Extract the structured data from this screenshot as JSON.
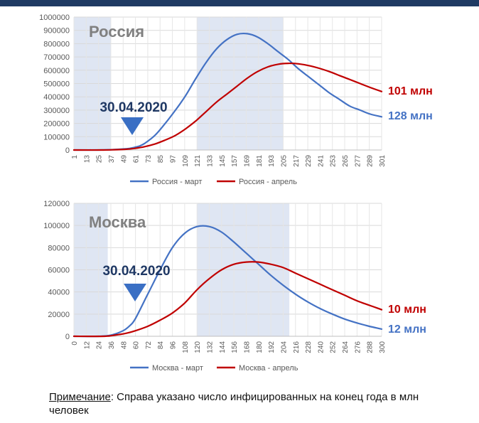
{
  "chart_data": [
    {
      "type": "line",
      "title": "Россия",
      "ylim": [
        0,
        1000000
      ],
      "yticks": [
        0,
        100000,
        200000,
        300000,
        400000,
        500000,
        600000,
        700000,
        800000,
        900000,
        1000000
      ],
      "xlim": [
        1,
        301
      ],
      "xticks": [
        1,
        13,
        25,
        37,
        49,
        61,
        73,
        85,
        97,
        109,
        121,
        133,
        145,
        157,
        169,
        181,
        193,
        205,
        217,
        229,
        241,
        253,
        265,
        277,
        289,
        301
      ],
      "shaded_ranges": [
        [
          1,
          37
        ],
        [
          121,
          205
        ]
      ],
      "grid": true,
      "legend_position": "bottom",
      "series": [
        {
          "name": "Россия - март",
          "color": "#4472c4",
          "x": [
            1,
            20,
            30,
            40,
            50,
            55,
            60,
            65,
            70,
            80,
            90,
            100,
            110,
            120,
            130,
            140,
            150,
            160,
            170,
            180,
            190,
            200,
            210,
            220,
            230,
            240,
            250,
            260,
            270,
            280,
            290,
            301
          ],
          "y": [
            0,
            0,
            1000,
            3000,
            8000,
            12000,
            20000,
            30000,
            50000,
            110000,
            200000,
            300000,
            410000,
            540000,
            660000,
            760000,
            830000,
            870000,
            875000,
            850000,
            800000,
            740000,
            680000,
            610000,
            550000,
            490000,
            430000,
            380000,
            330000,
            300000,
            270000,
            250000
          ]
        },
        {
          "name": "Россия - апрель",
          "color": "#c00000",
          "x": [
            1,
            30,
            40,
            50,
            60,
            70,
            80,
            90,
            100,
            110,
            120,
            130,
            140,
            150,
            160,
            170,
            180,
            190,
            200,
            210,
            220,
            230,
            240,
            250,
            260,
            270,
            280,
            290,
            301
          ],
          "y": [
            0,
            0,
            2000,
            5000,
            12000,
            25000,
            45000,
            75000,
            110000,
            160000,
            220000,
            290000,
            360000,
            420000,
            480000,
            540000,
            590000,
            625000,
            645000,
            652000,
            648000,
            635000,
            615000,
            590000,
            560000,
            530000,
            500000,
            470000,
            440000
          ]
        }
      ],
      "annotations": {
        "date": "30.04.2020",
        "end_label_april": "101 млн",
        "end_label_march": "128 млн"
      }
    },
    {
      "type": "line",
      "title": "Москва",
      "ylim": [
        0,
        120000
      ],
      "yticks": [
        0,
        20000,
        40000,
        60000,
        80000,
        100000,
        120000
      ],
      "xlim": [
        0,
        300
      ],
      "xticks": [
        0,
        12,
        24,
        36,
        48,
        60,
        72,
        84,
        96,
        108,
        120,
        132,
        144,
        156,
        168,
        180,
        192,
        204,
        216,
        228,
        240,
        252,
        264,
        276,
        288,
        300
      ],
      "shaded_ranges": [
        [
          0,
          33
        ],
        [
          120,
          210
        ]
      ],
      "grid": true,
      "legend_position": "bottom",
      "series": [
        {
          "name": "Москва - март",
          "color": "#4472c4",
          "x": [
            0,
            24,
            36,
            48,
            55,
            60,
            72,
            84,
            96,
            108,
            120,
            132,
            144,
            156,
            168,
            180,
            192,
            204,
            216,
            228,
            240,
            252,
            264,
            276,
            288,
            300
          ],
          "y": [
            0,
            0,
            1000,
            5000,
            10000,
            16000,
            38000,
            60000,
            80000,
            93000,
            99000,
            99000,
            94000,
            85000,
            75000,
            65000,
            55000,
            46000,
            38000,
            31000,
            25000,
            20000,
            15500,
            12000,
            9000,
            6500
          ]
        },
        {
          "name": "Москва - апрель",
          "color": "#c00000",
          "x": [
            0,
            30,
            40,
            50,
            60,
            72,
            84,
            96,
            108,
            120,
            132,
            144,
            156,
            168,
            180,
            192,
            204,
            216,
            228,
            240,
            252,
            264,
            276,
            288,
            300
          ],
          "y": [
            0,
            0,
            1000,
            2500,
            5000,
            9000,
            14500,
            21000,
            30000,
            42000,
            52000,
            60000,
            65000,
            67000,
            67000,
            65000,
            62000,
            57000,
            52000,
            47000,
            42000,
            37000,
            32000,
            28000,
            24000
          ]
        }
      ],
      "annotations": {
        "date": "30.04.2020",
        "end_label_april": "10 млн",
        "end_label_march": "12 млн"
      }
    }
  ],
  "note": {
    "label": "Примечание",
    "text": ": Справа указано число  инфицированных на конец года в млн человек"
  },
  "colors": {
    "march": "#4472c4",
    "april": "#c00000",
    "shade": "#dfe6f3",
    "title_gray": "#808080",
    "date_blue": "#1f3864",
    "arrow_blue": "#3a6fc4",
    "top_bar": "#1f3a63"
  }
}
